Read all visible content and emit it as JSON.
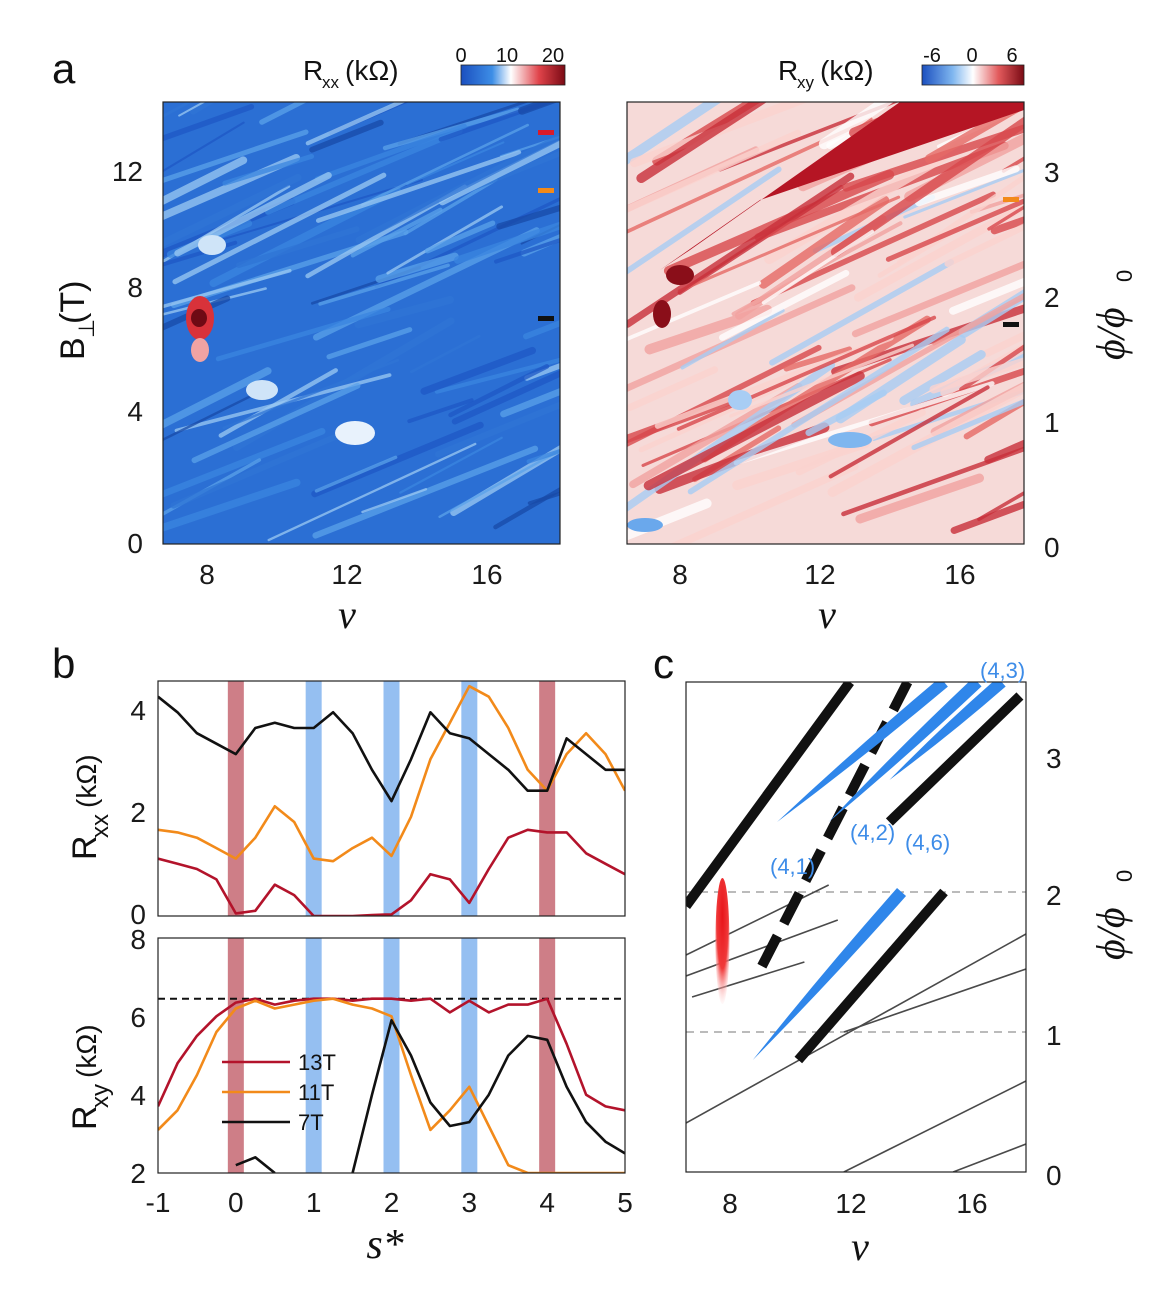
{
  "panels": {
    "a": "a",
    "b": "b",
    "c": "c"
  },
  "colorbars": {
    "rxx": {
      "label_main": "R",
      "label_sub": "xx",
      "label_unit": "(kΩ)",
      "ticks": [
        "0",
        "10",
        "20"
      ]
    },
    "rxy": {
      "label_main": "R",
      "label_sub": "xy",
      "label_unit": "(kΩ)",
      "ticks": [
        "-6",
        "0",
        "6"
      ]
    }
  },
  "axes": {
    "a_left_ylabel_main": "B",
    "a_left_ylabel_sub": "⊥",
    "a_left_ylabel_unit": "(T)",
    "a_left_yticks": [
      "0",
      "4",
      "8",
      "12"
    ],
    "nu_label": "ν",
    "nu_ticks": [
      "8",
      "12",
      "16"
    ],
    "phi_label": "ϕ/ϕ",
    "phi_sub": "0",
    "phi_ticks": [
      "0",
      "1",
      "2",
      "3"
    ],
    "b_top_ylabel_main": "R",
    "b_top_ylabel_sub": "xx",
    "b_top_ylabel_unit": "(kΩ)",
    "b_top_yticks": [
      "0",
      "2",
      "4"
    ],
    "b_bot_ylabel_main": "R",
    "b_bot_ylabel_sub": "xy",
    "b_bot_ylabel_unit": "(kΩ)",
    "b_bot_yticks": [
      "2",
      "4",
      "6",
      "8"
    ],
    "s_label": "s*",
    "s_ticks": [
      "-1",
      "0",
      "1",
      "2",
      "3",
      "4",
      "5"
    ]
  },
  "colors": {
    "red": "#b3132b",
    "orange": "#f28a1a",
    "black": "#111111",
    "blue_band": "#8ab8f0",
    "red_band": "#c9707a",
    "fan_blue": "#2f86ea"
  },
  "chart_data": [
    {
      "type": "heatmap",
      "title": "",
      "colorbar": "R_xx (kΩ)",
      "clim": [
        0,
        20
      ],
      "xlabel": "ν",
      "xlim": [
        6.8,
        18
      ],
      "xticks": [
        8,
        12,
        16
      ],
      "ylabel": "B⊥(T)",
      "ylim": [
        0,
        14
      ],
      "yticks": [
        0,
        4,
        8,
        12
      ],
      "markers": [
        {
          "B": 13.2,
          "color": "red"
        },
        {
          "B": 11.2,
          "color": "orange"
        },
        {
          "B": 7.1,
          "color": "black"
        }
      ],
      "features": [
        {
          "nu": 7.7,
          "B": 7.0,
          "value": 20,
          "note": "high resistance spot"
        },
        {
          "nu": 12.3,
          "B": 3.5,
          "value": 8
        }
      ]
    },
    {
      "type": "heatmap",
      "title": "",
      "colorbar": "R_xy (kΩ)",
      "clim": [
        -6,
        6
      ],
      "xlabel": "ν",
      "xlim": [
        6.8,
        18
      ],
      "xticks": [
        8,
        12,
        16
      ],
      "ylabel": "ϕ/ϕ0",
      "ylim": [
        0,
        3.5
      ],
      "yticks": [
        0,
        1,
        2,
        3
      ],
      "markers": [
        {
          "phi": 2.78,
          "color": "orange"
        },
        {
          "phi": 1.76,
          "color": "black"
        }
      ]
    },
    {
      "type": "line",
      "title": "",
      "xlabel": "s*",
      "ylabel": "Rxx(kΩ)",
      "xlim": [
        -1,
        5
      ],
      "ylim": [
        0,
        4.5
      ],
      "x": [
        -1,
        -0.75,
        -0.5,
        -0.25,
        0,
        0.25,
        0.5,
        0.75,
        1,
        1.25,
        1.5,
        1.75,
        2,
        2.25,
        2.5,
        2.75,
        3,
        3.25,
        3.5,
        3.75,
        4,
        4.25,
        4.5,
        4.75,
        5
      ],
      "series": [
        {
          "name": "13T",
          "color": "red",
          "values": [
            1.1,
            1.0,
            0.9,
            0.7,
            0.05,
            0.1,
            0.6,
            0.4,
            0.0,
            0.0,
            0.0,
            0.02,
            0.03,
            0.3,
            0.8,
            0.7,
            0.25,
            0.9,
            1.5,
            1.65,
            1.6,
            1.6,
            1.2,
            1.0,
            0.8
          ]
        },
        {
          "name": "11T",
          "color": "orange",
          "values": [
            1.65,
            1.6,
            1.5,
            1.3,
            1.1,
            1.5,
            2.1,
            1.8,
            1.1,
            1.05,
            1.3,
            1.5,
            1.15,
            1.9,
            3.0,
            3.7,
            4.4,
            4.2,
            3.6,
            2.8,
            2.4,
            3.1,
            3.5,
            3.1,
            2.4
          ]
        },
        {
          "name": "7T",
          "color": "black",
          "values": [
            4.2,
            3.9,
            3.5,
            3.3,
            3.1,
            3.6,
            3.7,
            3.6,
            3.6,
            3.9,
            3.5,
            2.8,
            2.2,
            3.0,
            3.9,
            3.5,
            3.4,
            3.1,
            2.8,
            2.4,
            2.4,
            3.4,
            3.1,
            2.8,
            2.8
          ]
        }
      ],
      "bands": [
        {
          "s": 0,
          "color": "red"
        },
        {
          "s": 1,
          "color": "blue"
        },
        {
          "s": 2,
          "color": "blue"
        },
        {
          "s": 3,
          "color": "blue"
        },
        {
          "s": 4,
          "color": "red"
        }
      ]
    },
    {
      "type": "line",
      "title": "",
      "xlabel": "s*",
      "ylabel": "Rxy(kΩ)",
      "xlim": [
        -1,
        5
      ],
      "ylim": [
        2,
        8
      ],
      "reference_line": 6.45,
      "legend": [
        "13T",
        "11T",
        "7T"
      ],
      "x": [
        -1,
        -0.75,
        -0.5,
        -0.25,
        0,
        0.25,
        0.5,
        0.75,
        1,
        1.25,
        1.5,
        1.75,
        2,
        2.25,
        2.5,
        2.75,
        3,
        3.25,
        3.5,
        3.75,
        4,
        4.25,
        4.5,
        4.75,
        5
      ],
      "series": [
        {
          "name": "13T",
          "color": "red",
          "values": [
            3.7,
            4.8,
            5.5,
            6.0,
            6.35,
            6.45,
            6.3,
            6.4,
            6.45,
            6.45,
            6.4,
            6.45,
            6.45,
            6.4,
            6.45,
            6.1,
            6.4,
            6.1,
            6.3,
            6.3,
            6.45,
            5.3,
            4.0,
            3.7,
            3.6
          ]
        },
        {
          "name": "11T",
          "color": "orange",
          "values": [
            3.1,
            3.6,
            4.5,
            5.6,
            6.2,
            6.4,
            6.2,
            6.3,
            6.4,
            6.45,
            6.3,
            6.2,
            6.0,
            4.5,
            3.1,
            3.6,
            4.2,
            3.2,
            2.2,
            2.0,
            2.0,
            2.0,
            2.0,
            2.0,
            2.0
          ]
        },
        {
          "name": "7T",
          "color": "black",
          "values": [
            null,
            null,
            null,
            null,
            2.2,
            2.4,
            2.0,
            null,
            null,
            null,
            2.0,
            4.0,
            5.9,
            5.0,
            3.8,
            3.2,
            3.3,
            4.0,
            5.0,
            5.5,
            5.4,
            4.2,
            3.3,
            2.8,
            2.5
          ]
        }
      ],
      "bands": [
        {
          "s": 0,
          "color": "red"
        },
        {
          "s": 1,
          "color": "blue"
        },
        {
          "s": 2,
          "color": "blue"
        },
        {
          "s": 3,
          "color": "blue"
        },
        {
          "s": 4,
          "color": "red"
        }
      ]
    },
    {
      "type": "line",
      "title": "",
      "xlabel": "ν",
      "ylabel": "ϕ/ϕ0",
      "xlim": [
        6.8,
        18
      ],
      "ylim": [
        0,
        3.5
      ],
      "labels": [
        "(4,1)",
        "(4,2)",
        "(4,6)",
        "(4,3)"
      ],
      "dashed_levels": [
        1,
        2
      ],
      "thick_lines": [
        {
          "from": [
            6.8,
            1.9
          ],
          "to": [
            12.2,
            3.5
          ]
        },
        {
          "from": [
            9.3,
            1.47
          ],
          "to": [
            14.1,
            3.5
          ],
          "dashed": true
        },
        {
          "from": [
            10.5,
            0.8
          ],
          "to": [
            15.3,
            2.0
          ]
        }
      ],
      "thick_lines_extra": [
        {
          "from": [
            13.5,
            2.5
          ],
          "to": [
            17.8,
            3.4
          ]
        }
      ],
      "blue_fans": [
        {
          "label": "(4,1)",
          "from": [
            9.8,
            2.5
          ],
          "to": [
            15.3,
            3.5
          ]
        },
        {
          "label": "(4,2)",
          "from": [
            11.5,
            2.5
          ],
          "to": [
            16.4,
            3.5
          ]
        },
        {
          "label": "(4,3)",
          "from": [
            13.5,
            2.8
          ],
          "to": [
            17.2,
            3.5
          ]
        },
        {
          "label": "(4,6)",
          "from": [
            9.0,
            0.8
          ],
          "to": [
            13.9,
            2.0
          ]
        }
      ],
      "thin_lines": [
        {
          "from": [
            6.8,
            1.55
          ],
          "to": [
            11.5,
            2.05
          ]
        },
        {
          "from": [
            6.8,
            1.4
          ],
          "to": [
            11.8,
            1.8
          ]
        },
        {
          "from": [
            7.0,
            1.25
          ],
          "to": [
            10.7,
            1.5
          ]
        },
        {
          "from": [
            6.8,
            0.35
          ],
          "to": [
            18,
            1.7
          ]
        },
        {
          "from": [
            12.0,
            1.0
          ],
          "to": [
            18,
            1.45
          ]
        },
        {
          "from": [
            12.0,
            0.0
          ],
          "to": [
            18,
            0.65
          ]
        },
        {
          "from": [
            15.6,
            0.0
          ],
          "to": [
            18,
            0.2
          ]
        }
      ],
      "red_blob": {
        "nu": 8.0,
        "phi_center": 1.65,
        "phi_range": [
          1.2,
          2.1
        ]
      }
    }
  ]
}
